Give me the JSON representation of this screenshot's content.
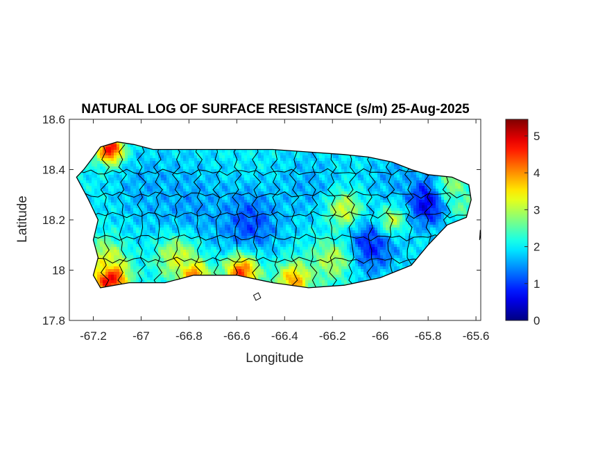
{
  "chart_data": {
    "type": "heatmap",
    "title": "NATURAL LOG OF SURFACE RESISTANCE (s/m) 25-Aug-2025",
    "xlabel": "Longitude",
    "ylabel": "Latitude",
    "xlim": [
      -67.3,
      -65.58
    ],
    "ylim": [
      17.8,
      18.6
    ],
    "xticks": [
      -67.2,
      -67,
      -66.8,
      -66.6,
      -66.4,
      -66.2,
      -66,
      -65.8,
      -65.6
    ],
    "xtick_labels": [
      "-67.2",
      "-67",
      "-66.8",
      "-66.6",
      "-66.4",
      "-66.2",
      "-66",
      "-65.8",
      "-65.6"
    ],
    "yticks": [
      17.8,
      18,
      18.2,
      18.4,
      18.6
    ],
    "ytick_labels": [
      "17.8",
      "18",
      "18.2",
      "18.4",
      "18.6"
    ],
    "colorbar": {
      "colormap": "jet",
      "clim": [
        0,
        5.45
      ],
      "ticks": [
        0,
        1,
        2,
        3,
        4,
        5
      ],
      "tick_labels": [
        "0",
        "1",
        "2",
        "3",
        "4",
        "5"
      ]
    },
    "field": {
      "base_value": 2.0,
      "features": [
        {
          "lon": -65.8,
          "lat": 18.28,
          "value": 0.3,
          "radius": 0.07
        },
        {
          "lon": -66.05,
          "lat": 18.1,
          "value": 0.8,
          "radius": 0.08
        },
        {
          "lon": -66.55,
          "lat": 18.19,
          "value": 1.0,
          "radius": 0.09
        },
        {
          "lon": -66.8,
          "lat": 18.25,
          "value": 1.5,
          "radius": 0.12
        },
        {
          "lon": -66.98,
          "lat": 18.33,
          "value": 1.6,
          "radius": 0.1
        },
        {
          "lon": -66.3,
          "lat": 18.33,
          "value": 1.6,
          "radius": 0.1
        },
        {
          "lon": -65.95,
          "lat": 18.36,
          "value": 1.6,
          "radius": 0.08
        },
        {
          "lon": -67.13,
          "lat": 17.97,
          "value": 5.3,
          "radius": 0.05
        },
        {
          "lon": -67.13,
          "lat": 18.48,
          "value": 4.8,
          "radius": 0.04
        },
        {
          "lon": -66.78,
          "lat": 17.98,
          "value": 4.5,
          "radius": 0.04
        },
        {
          "lon": -66.58,
          "lat": 17.99,
          "value": 4.4,
          "radius": 0.05
        },
        {
          "lon": -66.36,
          "lat": 17.96,
          "value": 3.9,
          "radius": 0.05
        },
        {
          "lon": -67.15,
          "lat": 18.05,
          "value": 3.2,
          "radius": 0.05
        },
        {
          "lon": -66.15,
          "lat": 18.24,
          "value": 3.2,
          "radius": 0.05
        },
        {
          "lon": -66.2,
          "lat": 18.04,
          "value": 3.0,
          "radius": 0.06
        },
        {
          "lon": -65.95,
          "lat": 18.2,
          "value": 3.0,
          "radius": 0.04
        },
        {
          "lon": -65.7,
          "lat": 18.34,
          "value": 2.8,
          "radius": 0.05
        },
        {
          "lon": -66.85,
          "lat": 18.05,
          "value": 3.2,
          "radius": 0.06
        },
        {
          "lon": -65.65,
          "lat": 18.25,
          "value": 2.5,
          "radius": 0.05
        }
      ]
    },
    "island_outline": [
      [
        -67.27,
        18.37
      ],
      [
        -67.24,
        18.4
      ],
      [
        -67.2,
        18.45
      ],
      [
        -67.17,
        18.49
      ],
      [
        -67.1,
        18.51
      ],
      [
        -67.03,
        18.5
      ],
      [
        -66.95,
        18.48
      ],
      [
        -66.85,
        18.48
      ],
      [
        -66.7,
        18.48
      ],
      [
        -66.58,
        18.48
      ],
      [
        -66.45,
        18.48
      ],
      [
        -66.3,
        18.47
      ],
      [
        -66.15,
        18.46
      ],
      [
        -66.05,
        18.45
      ],
      [
        -65.95,
        18.43
      ],
      [
        -65.87,
        18.4
      ],
      [
        -65.8,
        18.38
      ],
      [
        -65.7,
        18.37
      ],
      [
        -65.63,
        18.34
      ],
      [
        -65.62,
        18.28
      ],
      [
        -65.64,
        18.21
      ],
      [
        -65.72,
        18.18
      ],
      [
        -65.8,
        18.1
      ],
      [
        -65.87,
        18.02
      ],
      [
        -66.0,
        17.97
      ],
      [
        -66.15,
        17.94
      ],
      [
        -66.3,
        17.93
      ],
      [
        -66.45,
        17.95
      ],
      [
        -66.6,
        17.98
      ],
      [
        -66.78,
        17.98
      ],
      [
        -66.9,
        17.95
      ],
      [
        -67.05,
        17.95
      ],
      [
        -67.17,
        17.93
      ],
      [
        -67.2,
        17.98
      ],
      [
        -67.18,
        18.05
      ],
      [
        -67.2,
        18.12
      ],
      [
        -67.18,
        18.2
      ],
      [
        -67.22,
        18.28
      ],
      [
        -67.27,
        18.37
      ]
    ],
    "vieques_outline": [
      [
        -65.585,
        18.12
      ],
      [
        -65.58,
        18.14
      ],
      [
        -65.582,
        18.16
      ],
      [
        -65.585,
        18.12
      ]
    ],
    "caja_de_muertos": [
      [
        -66.53,
        17.9
      ],
      [
        -66.51,
        17.91
      ],
      [
        -66.5,
        17.89
      ],
      [
        -66.52,
        17.88
      ],
      [
        -66.53,
        17.9
      ]
    ],
    "municipal_grid": {
      "lon_lines": [
        -67.15,
        -67.08,
        -67.0,
        -66.93,
        -66.85,
        -66.76,
        -66.68,
        -66.6,
        -66.52,
        -66.44,
        -66.36,
        -66.28,
        -66.2,
        -66.12,
        -66.04,
        -65.96,
        -65.88,
        -65.8,
        -65.72
      ],
      "lat_lines": [
        18.39,
        18.3,
        18.22,
        18.13,
        18.04
      ]
    }
  }
}
